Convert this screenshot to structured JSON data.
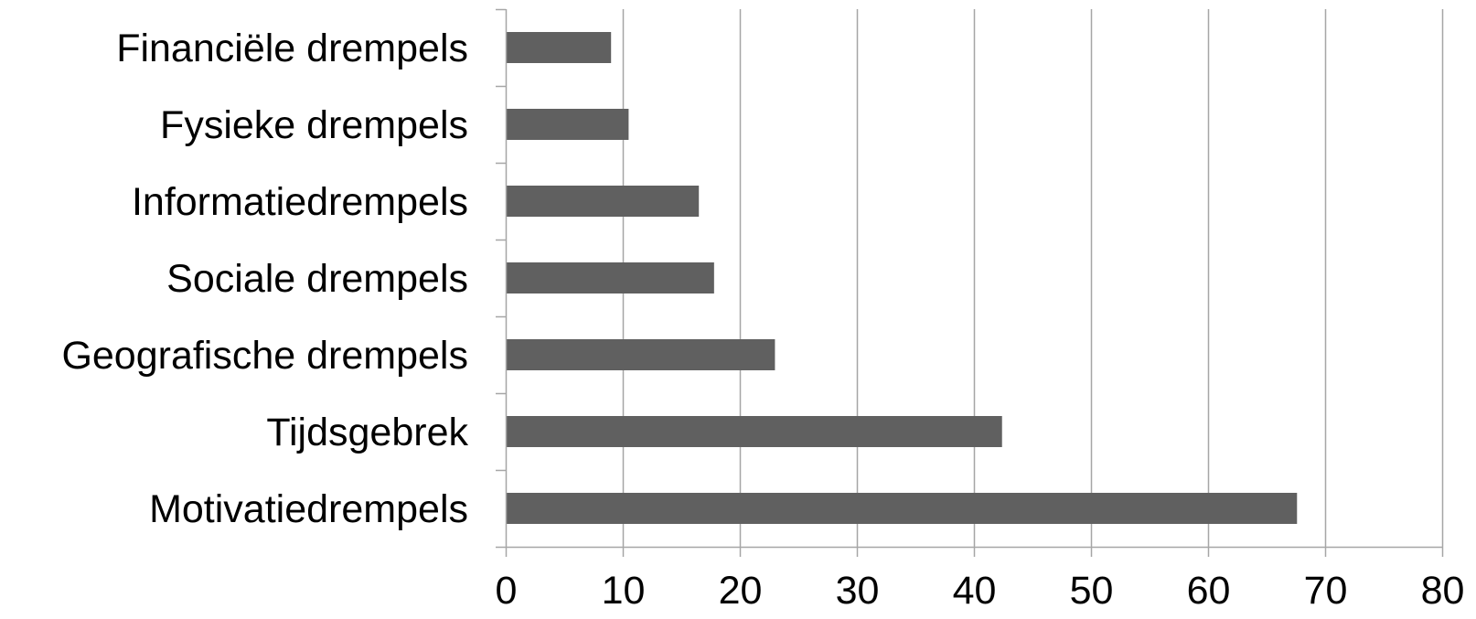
{
  "chart_data": {
    "type": "bar",
    "orientation": "horizontal",
    "title": "",
    "xlabel": "",
    "ylabel": "",
    "categories": [
      "Financiële drempels",
      "Fysieke drempels",
      "Informatiedrempels",
      "Sociale drempels",
      "Geografische drempels",
      "Tijdsgebrek",
      "Motivatiedrempels"
    ],
    "values": [
      9,
      10.5,
      16.5,
      17.8,
      23,
      42.4,
      67.6
    ],
    "xlim": [
      0,
      80
    ],
    "xticks": [
      "0",
      "10",
      "20",
      "30",
      "40",
      "50",
      "60",
      "70",
      "80"
    ],
    "grid": "vertical",
    "legend": "none",
    "bar_color": "#606060",
    "grid_color": "#a6a6a6"
  }
}
